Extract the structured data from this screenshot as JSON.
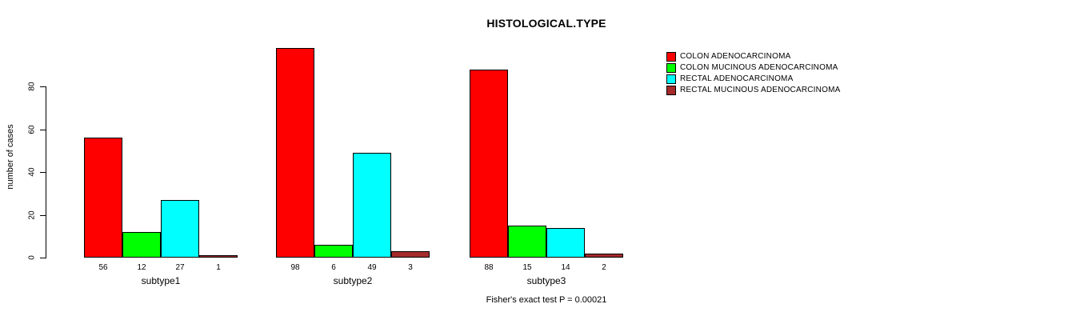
{
  "chart_data": {
    "type": "bar",
    "title": "HISTOLOGICAL.TYPE",
    "ylabel": "number of cases",
    "xlabel": "",
    "categories": [
      "subtype1",
      "subtype2",
      "subtype3"
    ],
    "series": [
      {
        "name": "COLON ADENOCARCINOMA",
        "color": "#ff0000",
        "values": [
          56,
          98,
          88
        ]
      },
      {
        "name": "COLON MUCINOUS ADENOCARCINOMA",
        "color": "#00ff00",
        "values": [
          12,
          6,
          15
        ]
      },
      {
        "name": "RECTAL ADENOCARCINOMA",
        "color": "#00ffff",
        "values": [
          27,
          49,
          14
        ]
      },
      {
        "name": "RECTAL MUCINOUS ADENOCARCINOMA",
        "color": "#a52a2a",
        "values": [
          1,
          3,
          2
        ]
      }
    ],
    "y_ticks": [
      0,
      20,
      40,
      60,
      80
    ],
    "ylim": [
      0,
      80
    ],
    "grid": false,
    "legend_position": "right",
    "bar_value_labels_shown": true,
    "annotation": "Fisher's exact test P = 0.00021"
  }
}
